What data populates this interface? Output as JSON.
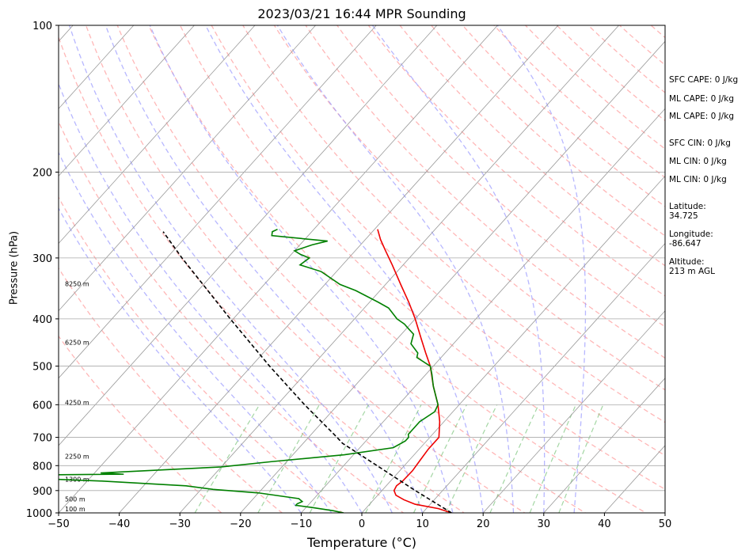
{
  "title": "2023/03/21 16:44 MPR Sounding",
  "chart_data": {
    "type": "skew-t",
    "title": "2023/03/21 16:44 MPR Sounding",
    "xlabel": "Temperature (°C)",
    "ylabel": "Pressure (hPa)",
    "xlim": [
      -50,
      50
    ],
    "ylim": [
      1000,
      100
    ],
    "y_scale": "log",
    "x_ticks": [
      -50,
      -40,
      -30,
      -20,
      -10,
      0,
      10,
      20,
      30,
      40,
      50
    ],
    "y_ticks": [
      1000,
      900,
      800,
      700,
      600,
      500,
      400,
      300,
      200,
      100
    ],
    "grid": true,
    "height_labels": [
      {
        "p": 1000,
        "label": "100 m"
      },
      {
        "p": 955,
        "label": "500 m"
      },
      {
        "p": 870,
        "label": "1300 m"
      },
      {
        "p": 780,
        "label": "2250 m"
      },
      {
        "p": 605,
        "label": "4250 m"
      },
      {
        "p": 455,
        "label": "6250 m"
      },
      {
        "p": 345,
        "label": "8250 m"
      }
    ],
    "series": [
      {
        "role": "temperature",
        "color": "#ee0000",
        "points": [
          [
            1000,
            14.8
          ],
          [
            980,
            12
          ],
          [
            960,
            7.5
          ],
          [
            940,
            5
          ],
          [
            920,
            3
          ],
          [
            900,
            2
          ],
          [
            880,
            1.7
          ],
          [
            860,
            2
          ],
          [
            820,
            2.1
          ],
          [
            780,
            1.8
          ],
          [
            740,
            1.5
          ],
          [
            700,
            1.5
          ],
          [
            650,
            -0.7
          ],
          [
            600,
            -3.5
          ],
          [
            550,
            -7
          ],
          [
            500,
            -10.5
          ],
          [
            470,
            -13.2
          ],
          [
            440,
            -16
          ],
          [
            400,
            -20
          ],
          [
            370,
            -23.5
          ],
          [
            340,
            -27.5
          ],
          [
            310,
            -31.8
          ],
          [
            290,
            -35
          ],
          [
            275,
            -37.5
          ],
          [
            262,
            -39.5
          ]
        ]
      },
      {
        "role": "dewpoint",
        "color": "#008000",
        "points": [
          [
            1000,
            -3
          ],
          [
            990,
            -5
          ],
          [
            975,
            -9
          ],
          [
            965,
            -12
          ],
          [
            958,
            -12
          ],
          [
            948,
            -11.5
          ],
          [
            935,
            -12.5
          ],
          [
            910,
            -20
          ],
          [
            895,
            -28
          ],
          [
            880,
            -33
          ],
          [
            860,
            -48
          ],
          [
            842,
            -68
          ],
          [
            838,
            -70
          ],
          [
            833,
            -45
          ],
          [
            828,
            -49
          ],
          [
            822,
            -44
          ],
          [
            805,
            -30
          ],
          [
            785,
            -22.5
          ],
          [
            760,
            -11.5
          ],
          [
            735,
            -4.5
          ],
          [
            712,
            -3.5
          ],
          [
            700,
            -3.5
          ],
          [
            690,
            -4
          ],
          [
            650,
            -4
          ],
          [
            620,
            -3
          ],
          [
            600,
            -3.5
          ],
          [
            550,
            -7
          ],
          [
            520,
            -9
          ],
          [
            500,
            -10.5
          ],
          [
            480,
            -14
          ],
          [
            470,
            -14.5
          ],
          [
            450,
            -17
          ],
          [
            430,
            -18
          ],
          [
            420,
            -19.5
          ],
          [
            410,
            -21
          ],
          [
            400,
            -23
          ],
          [
            380,
            -26
          ],
          [
            370,
            -28.5
          ],
          [
            350,
            -34
          ],
          [
            340,
            -37.5
          ],
          [
            320,
            -42.5
          ],
          [
            310,
            -47
          ],
          [
            300,
            -46.5
          ],
          [
            295,
            -48.5
          ],
          [
            290,
            -50
          ],
          [
            282,
            -48
          ],
          [
            277,
            -46
          ],
          [
            270,
            -56
          ],
          [
            265,
            -56.5
          ],
          [
            262,
            -56
          ]
        ]
      },
      {
        "role": "parcel",
        "color": "#000000",
        "dash": true,
        "points": [
          [
            1000,
            14.8
          ],
          [
            900,
            5.5
          ],
          [
            800,
            -4.5
          ],
          [
            720,
            -13.5
          ],
          [
            700,
            -15.3
          ],
          [
            600,
            -25.5
          ],
          [
            500,
            -37
          ],
          [
            400,
            -50.5
          ],
          [
            300,
            -67.5
          ],
          [
            265,
            -74.5
          ]
        ]
      }
    ],
    "dry_adiabats_theta_K": [
      250,
      260,
      270,
      280,
      290,
      300,
      310,
      320,
      330,
      340,
      350,
      360,
      370,
      380,
      390,
      400,
      410,
      420,
      430,
      440,
      450,
      460,
      470,
      480,
      490,
      500,
      510,
      520,
      530,
      540
    ],
    "moist_adiabats_C": [
      -10,
      -5,
      0,
      5,
      10,
      15,
      20,
      25,
      30,
      35
    ],
    "mixing_ratio_lines_gkg": [
      0.4,
      1,
      2,
      4,
      7,
      10,
      16,
      24,
      32
    ]
  },
  "stats": {
    "sfc_cape": "SFC CAPE: 0 J/kg",
    "ml_cape_1": "ML CAPE: 0 J/kg",
    "ml_cape_2": "ML CAPE: 0 J/kg",
    "sfc_cin": "SFC CIN: 0 J/kg",
    "ml_cin_1": "ML CIN: 0 J/kg",
    "ml_cin_2": "ML CIN: 0 J/kg",
    "latitude_label": "Latitude:",
    "latitude_value": "34.725",
    "longitude_label": "Longitude:",
    "longitude_value": "-86.647",
    "altitude_label": "Altitude:",
    "altitude_value": "213 m AGL"
  }
}
